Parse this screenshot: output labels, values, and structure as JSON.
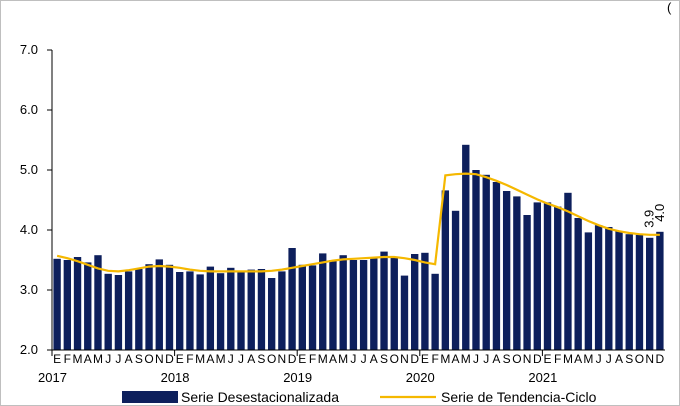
{
  "chart_data": {
    "type": "bar",
    "ylim": [
      2.0,
      7.0
    ],
    "y_ticks": [
      "2.0",
      "3.0",
      "4.0",
      "5.0",
      "6.0",
      "7.0"
    ],
    "month_labels": [
      "E",
      "F",
      "M",
      "A",
      "M",
      "J",
      "J",
      "A",
      "S",
      "O",
      "N",
      "D"
    ],
    "years": [
      "2017",
      "2018",
      "2019",
      "2020",
      "2021"
    ],
    "series": [
      {
        "name": "Serie Desestacionalizada",
        "kind": "bar",
        "color": "#0d1f5c",
        "values": [
          3.52,
          3.5,
          3.55,
          3.46,
          3.58,
          3.27,
          3.25,
          3.31,
          3.35,
          3.43,
          3.51,
          3.42,
          3.3,
          3.31,
          3.26,
          3.39,
          3.28,
          3.37,
          3.3,
          3.34,
          3.35,
          3.2,
          3.31,
          3.7,
          3.42,
          3.41,
          3.61,
          3.5,
          3.58,
          3.5,
          3.5,
          3.55,
          3.64,
          3.55,
          3.24,
          3.6,
          3.62,
          3.27,
          4.66,
          4.32,
          5.42,
          5.0,
          4.92,
          4.8,
          4.65,
          4.56,
          4.25,
          4.46,
          4.46,
          4.39,
          4.62,
          4.2,
          3.96,
          4.08,
          4.05,
          3.98,
          3.93,
          3.92,
          3.87,
          3.97
        ]
      },
      {
        "name": "Serie de Tendencia-Ciclo",
        "kind": "line",
        "color": "#f5b800",
        "values": [
          3.57,
          3.53,
          3.48,
          3.42,
          3.36,
          3.32,
          3.31,
          3.33,
          3.36,
          3.39,
          3.4,
          3.39,
          3.37,
          3.34,
          3.32,
          3.31,
          3.31,
          3.31,
          3.31,
          3.31,
          3.31,
          3.32,
          3.34,
          3.37,
          3.4,
          3.43,
          3.46,
          3.49,
          3.51,
          3.52,
          3.53,
          3.54,
          3.55,
          3.55,
          3.53,
          3.5,
          3.46,
          3.43,
          4.91,
          4.93,
          4.94,
          4.93,
          4.88,
          4.82,
          4.75,
          4.67,
          4.59,
          4.51,
          4.44,
          4.38,
          4.31,
          4.23,
          4.15,
          4.08,
          4.02,
          3.98,
          3.95,
          3.93,
          3.92,
          3.92
        ]
      }
    ],
    "annotations": [
      "3.9",
      "4.0"
    ],
    "partial_text": "(",
    "legend_position": "bottom",
    "grid": false
  }
}
